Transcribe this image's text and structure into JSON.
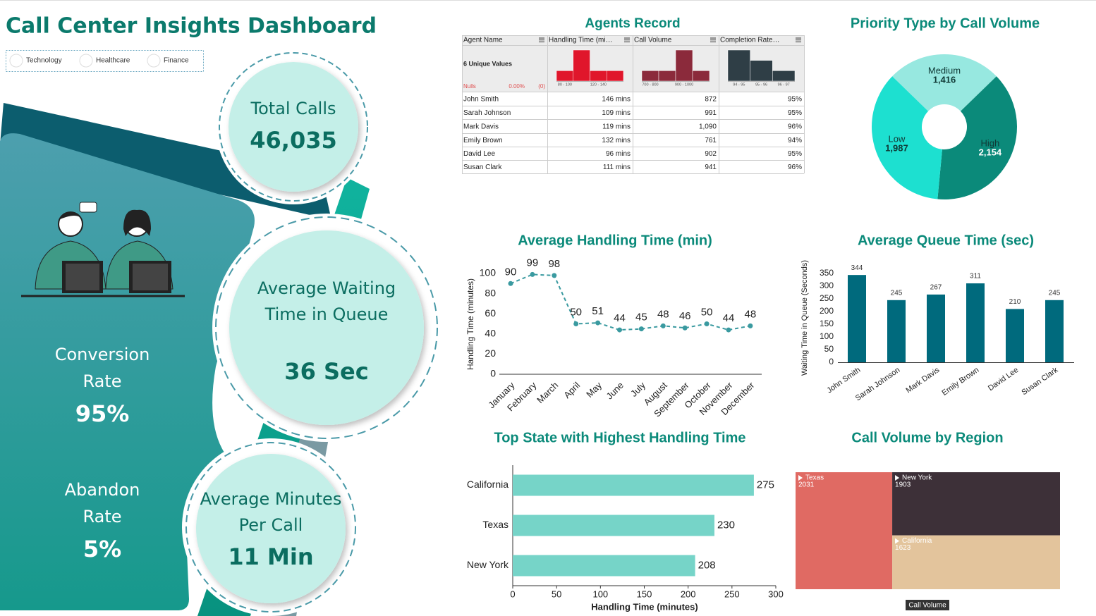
{
  "title": "Call Center Insights Dashboard",
  "filters": [
    "Technology",
    "Healthcare",
    "Finance"
  ],
  "kpis": [
    {
      "label": "Total Calls",
      "value": "46,035"
    },
    {
      "label": "Average Waiting Time in Queue",
      "value": "36 Sec"
    },
    {
      "label": "Average Minutes Per Call",
      "value": "11 Min"
    },
    {
      "label": "Conversion Rate",
      "value": "95%"
    },
    {
      "label": "Abandon Rate",
      "value": "5%"
    }
  ],
  "agents_table": {
    "title": "Agents Record",
    "columns": [
      "Agent Name",
      "Handling Time (mi…",
      "Call Volume",
      "Completion Rate…"
    ],
    "summary_label": "6 Unique Values",
    "nulls_label": "Nulls",
    "nulls_pct": "0.00%",
    "nulls_count": "(0)",
    "histograms": [
      {
        "categories": [
          "80 - 100",
          null,
          "120 - 140",
          null
        ],
        "counts": [
          1,
          3,
          1,
          1
        ],
        "color": "#e0162b"
      },
      {
        "categories": [
          "700 - 800",
          null,
          "900 - 1000",
          null
        ],
        "counts": [
          1,
          1,
          3,
          1
        ],
        "color": "#8b2a3b"
      },
      {
        "categories": [
          "94 - 95",
          "95 - 96",
          "96 - 97"
        ],
        "counts": [
          3,
          2,
          1
        ],
        "color": "#2f3e46"
      }
    ],
    "rows": [
      [
        "John Smith",
        "146 mins",
        "872",
        "95%"
      ],
      [
        "Sarah Johnson",
        "109 mins",
        "991",
        "95%"
      ],
      [
        "Mark Davis",
        "119 mins",
        "1,090",
        "96%"
      ],
      [
        "Emily Brown",
        "132 mins",
        "761",
        "94%"
      ],
      [
        "David Lee",
        "96 mins",
        "902",
        "95%"
      ],
      [
        "Susan Clark",
        "111 mins",
        "941",
        "96%"
      ]
    ]
  },
  "chart_data": [
    {
      "type": "pie",
      "title": "Priority Type by Call Volume",
      "categories": [
        "Medium",
        "High",
        "Low"
      ],
      "values": [
        1416,
        2154,
        1987
      ],
      "value_labels": [
        "1,416",
        "2,154",
        "1,987"
      ],
      "colors": [
        "#97e8e0",
        "#0b8a7a",
        "#1de0d0"
      ]
    },
    {
      "type": "line",
      "title": "Average Handling Time (min)",
      "y_label": "Handling Time (minutes)",
      "categories": [
        "January",
        "February",
        "March",
        "April",
        "May",
        "June",
        "July",
        "August",
        "September",
        "October",
        "November",
        "December"
      ],
      "values": [
        90,
        99,
        98,
        50,
        51,
        44,
        45,
        48,
        46,
        50,
        44,
        48
      ],
      "color": "#3a9aa0",
      "ylim": [
        0,
        100
      ],
      "yticks": [
        0,
        20,
        40,
        60,
        80,
        100
      ],
      "grid": false
    },
    {
      "type": "bar",
      "title": "Average Queue Time (sec)",
      "y_label": "Waiting Time in Queue (Seconds)",
      "categories": [
        "John Smith",
        "Sarah Johnson",
        "Mark Davis",
        "Emily Brown",
        "David Lee",
        "Susan Clark"
      ],
      "values": [
        344,
        245,
        267,
        311,
        210,
        245
      ],
      "color": "#006a7d",
      "ylim": [
        0,
        350
      ],
      "yticks": [
        0,
        50,
        100,
        150,
        200,
        250,
        300,
        350
      ],
      "grid": false
    },
    {
      "type": "hbar",
      "title": "Top State with Highest Handling Time",
      "x_label": "Handling Time (minutes)",
      "categories": [
        "California",
        "Texas",
        "New York"
      ],
      "values": [
        275,
        230,
        208
      ],
      "color": "#76d4c8",
      "xlim": [
        0,
        300
      ],
      "xticks": [
        0,
        50,
        100,
        150,
        200,
        250,
        300
      ],
      "grid": false
    },
    {
      "type": "treemap",
      "title": "Call Volume by Region",
      "legend_title": "Call Volume",
      "categories": [
        "Texas",
        "New York",
        "California"
      ],
      "values": [
        2031,
        1903,
        1623
      ],
      "colors": [
        "#e06a63",
        "#3d3038",
        "#e3c49c"
      ]
    }
  ]
}
